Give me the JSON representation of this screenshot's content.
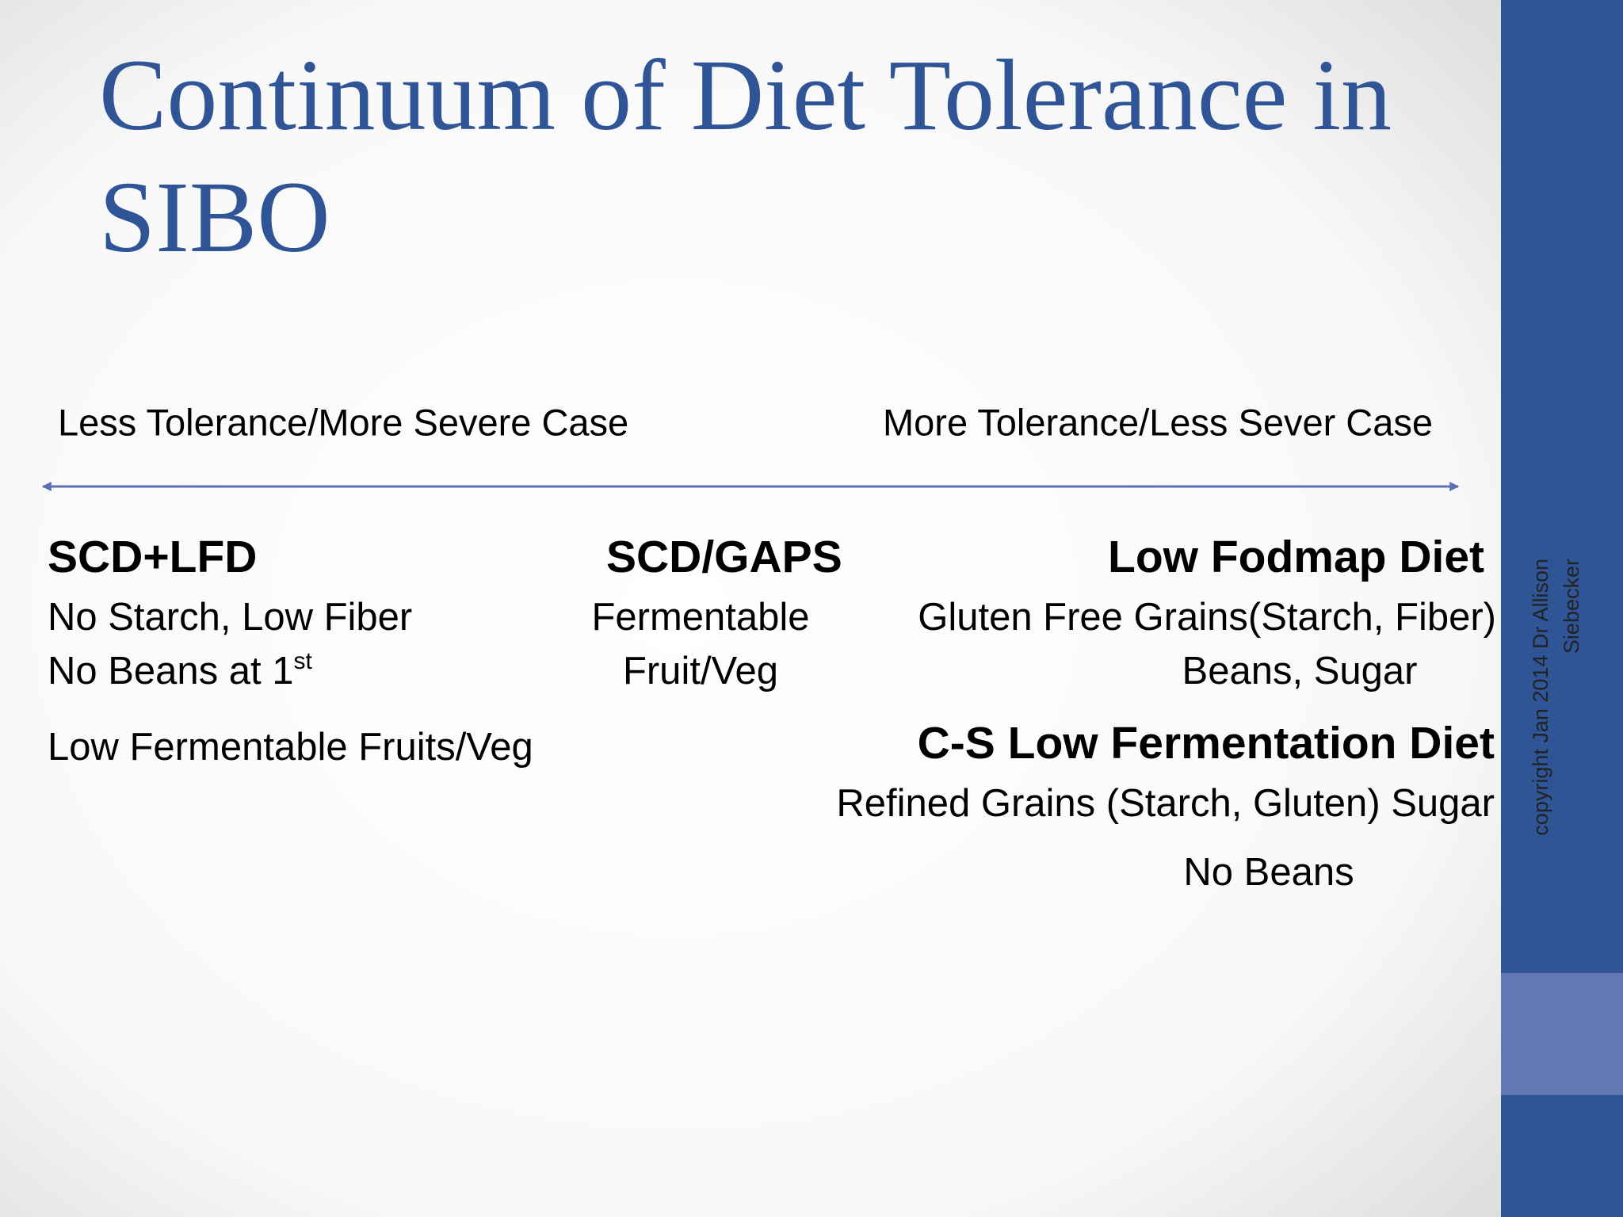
{
  "slide": {
    "title": [
      "Continuum of Diet Tolerance in",
      "SIBO"
    ],
    "scale": {
      "left_label": "Less Tolerance/More Severe Case",
      "right_label": "More Tolerance/Less Sever Case"
    },
    "columns": [
      {
        "heading": "SCD+LFD",
        "lines": [
          "No Starch, Low Fiber",
          {
            "text": "No Beans at 1",
            "sup": "st"
          },
          "Low Fermentable Fruits/Veg"
        ]
      },
      {
        "heading": "SCD/GAPS",
        "lines": [
          "Fermentable",
          "Fruit/Veg"
        ]
      },
      {
        "heading": "Low Fodmap Diet",
        "lines": [
          "Gluten Free Grains(Starch, Fiber)",
          "Beans, Sugar"
        ]
      },
      {
        "heading": "C-S Low Fermentation Diet",
        "lines": [
          "Refined Grains (Starch, Gluten) Sugar",
          "No Beans"
        ]
      }
    ],
    "copyright": [
      "copyright Jan 2014  Dr Allison",
      "Siebecker"
    ]
  }
}
